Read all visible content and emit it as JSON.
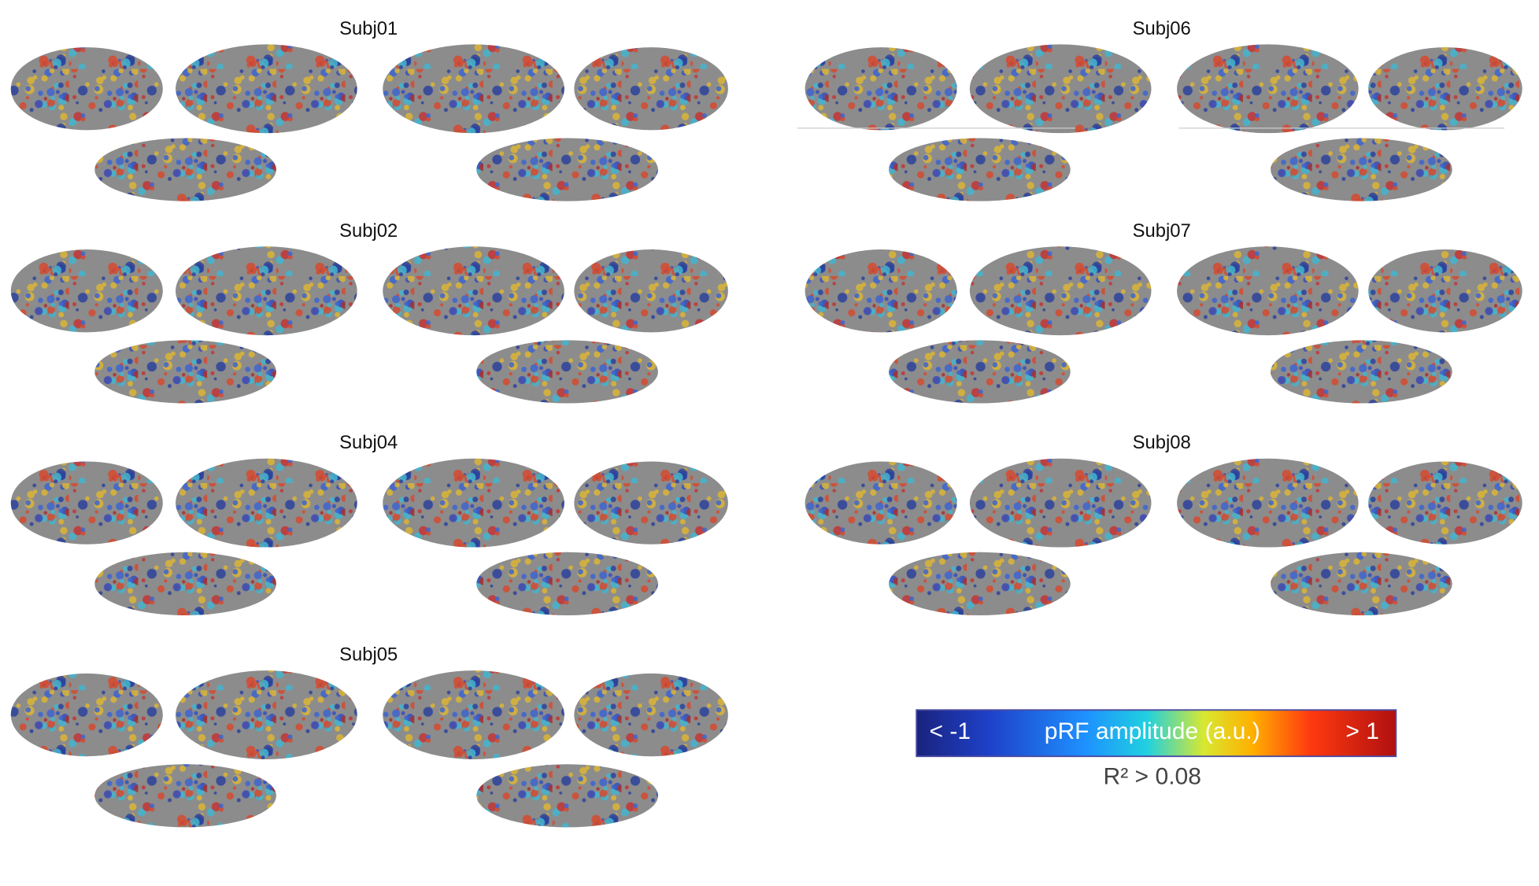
{
  "panels": {
    "left": [
      "Subj01",
      "Subj02",
      "Subj04",
      "Subj05"
    ],
    "right": [
      "Subj06",
      "Subj07",
      "Subj08"
    ]
  },
  "colorbar": {
    "min_label": "< -1",
    "title": "pRF amplitude (a.u.)",
    "max_label": "> 1",
    "threshold": "R² > 0.08"
  }
}
